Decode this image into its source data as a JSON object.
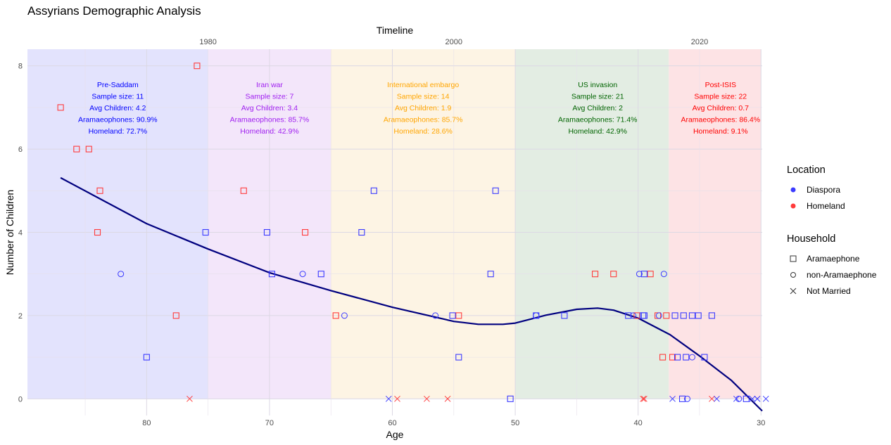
{
  "chart_data": {
    "type": "scatter",
    "title": "Assyrians Demographic Analysis",
    "xlabel": "Age",
    "ylabel": "Number of Children",
    "top_axis_label": "Timeline",
    "x_reversed": true,
    "xlim": [
      89.7,
      29.9
    ],
    "ylim": [
      -0.4,
      8.4
    ],
    "x_ticks": [
      80,
      70,
      60,
      50,
      40,
      30
    ],
    "y_ticks": [
      0,
      2,
      4,
      6,
      8
    ],
    "top_ticks": [
      1980,
      2000,
      2020
    ],
    "top_axis_year_minus_age": 2055,
    "grid": true,
    "periods": [
      {
        "name": "Pre-Saddam",
        "years": [
          null,
          1980
        ],
        "text_color": "#0000ff",
        "fill": "#e3e3fd",
        "lines": [
          "Pre-Saddam",
          "Sample size: 11",
          "Avg Children: 4.2",
          "Aramaeophones: 90.9%",
          "Homeland: 72.7%"
        ]
      },
      {
        "name": "Iran war",
        "years": [
          1980,
          1990
        ],
        "text_color": "#a020f0",
        "fill": "#f3e6fa",
        "lines": [
          "Iran war",
          "Sample size: 7",
          "Avg Children: 3.4",
          "Aramaeophones: 85.7%",
          "Homeland: 42.9%"
        ]
      },
      {
        "name": "International embargo",
        "years": [
          1990,
          2005
        ],
        "text_color": "#ffa500",
        "fill": "#fdf4e4",
        "lines": [
          "International embargo",
          "Sample size: 14",
          "Avg Children: 1.9",
          "Aramaeophones: 85.7%",
          "Homeland: 28.6%"
        ]
      },
      {
        "name": "US invasion",
        "years": [
          2005,
          2017.5
        ],
        "text_color": "#006400",
        "fill": "#e3ede3",
        "lines": [
          "US invasion",
          "Sample size: 21",
          "Avg Children: 2",
          "Aramaeophones: 71.4%",
          "Homeland: 42.9%"
        ]
      },
      {
        "name": "Post-ISIS",
        "years": [
          2017.5,
          2025
        ],
        "text_color": "#ff0000",
        "fill": "#fde3e5",
        "lines": [
          "Post-ISIS",
          "Sample size: 22",
          "Avg Children: 0.7",
          "Aramaeophones: 86.4%",
          "Homeland: 9.1%"
        ]
      }
    ],
    "series": [
      {
        "name": "Homeland",
        "color": "#ff3b3b",
        "points": [
          [
            87.0,
            7,
            "square"
          ],
          [
            85.7,
            6,
            "square"
          ],
          [
            84.7,
            6,
            "square"
          ],
          [
            83.8,
            5,
            "square"
          ],
          [
            84.0,
            4,
            "square"
          ],
          [
            77.6,
            2,
            "square"
          ],
          [
            75.9,
            8,
            "square"
          ],
          [
            72.1,
            5,
            "square"
          ],
          [
            67.1,
            4,
            "square"
          ],
          [
            64.6,
            2,
            "square"
          ],
          [
            54.6,
            2,
            "square"
          ],
          [
            43.5,
            3,
            "square"
          ],
          [
            42.0,
            3,
            "square"
          ],
          [
            39.0,
            3,
            "square"
          ],
          [
            40.1,
            2,
            "square"
          ],
          [
            38.4,
            2,
            "square"
          ],
          [
            37.7,
            2,
            "square"
          ],
          [
            38.0,
            1,
            "square"
          ],
          [
            37.2,
            1,
            "square"
          ],
          [
            76.5,
            0,
            "x"
          ],
          [
            59.6,
            0,
            "x"
          ],
          [
            57.2,
            0,
            "x"
          ],
          [
            55.5,
            0,
            "x"
          ],
          [
            39.6,
            0,
            "x"
          ],
          [
            39.5,
            0,
            "x"
          ],
          [
            34.0,
            0,
            "x"
          ]
        ]
      },
      {
        "name": "Diaspora",
        "color": "#3b3bff",
        "points": [
          [
            80.0,
            1,
            "square"
          ],
          [
            75.2,
            4,
            "square"
          ],
          [
            70.2,
            4,
            "square"
          ],
          [
            69.8,
            3,
            "square"
          ],
          [
            65.8,
            3,
            "square"
          ],
          [
            61.5,
            5,
            "square"
          ],
          [
            62.5,
            4,
            "square"
          ],
          [
            55.1,
            2,
            "square"
          ],
          [
            54.6,
            1,
            "square"
          ],
          [
            52.0,
            3,
            "square"
          ],
          [
            51.6,
            5,
            "square"
          ],
          [
            50.4,
            0,
            "square"
          ],
          [
            48.3,
            2,
            "square"
          ],
          [
            46.0,
            2,
            "square"
          ],
          [
            39.5,
            3,
            "square"
          ],
          [
            40.8,
            2,
            "square"
          ],
          [
            39.6,
            2,
            "square"
          ],
          [
            39.5,
            2,
            "square"
          ],
          [
            37.0,
            2,
            "square"
          ],
          [
            36.3,
            2,
            "square"
          ],
          [
            35.6,
            2,
            "square"
          ],
          [
            35.1,
            2,
            "square"
          ],
          [
            34.0,
            2,
            "square"
          ],
          [
            36.8,
            1,
            "square"
          ],
          [
            36.1,
            1,
            "square"
          ],
          [
            34.6,
            1,
            "square"
          ],
          [
            36.4,
            0,
            "square"
          ],
          [
            31.2,
            0,
            "square"
          ],
          [
            82.1,
            3,
            "circle"
          ],
          [
            67.3,
            3,
            "circle"
          ],
          [
            63.9,
            2,
            "circle"
          ],
          [
            56.5,
            2,
            "circle"
          ],
          [
            48.3,
            2,
            "circle"
          ],
          [
            39.9,
            3,
            "circle"
          ],
          [
            37.9,
            3,
            "circle"
          ],
          [
            40.4,
            2,
            "circle"
          ],
          [
            38.3,
            2,
            "circle"
          ],
          [
            35.6,
            1,
            "circle"
          ],
          [
            36.0,
            0,
            "circle"
          ],
          [
            31.8,
            0,
            "circle"
          ],
          [
            60.3,
            0,
            "x"
          ],
          [
            37.2,
            0,
            "x"
          ],
          [
            33.6,
            0,
            "x"
          ],
          [
            32.0,
            0,
            "x"
          ],
          [
            30.7,
            0,
            "x"
          ],
          [
            30.3,
            0,
            "x"
          ],
          [
            30.3,
            0,
            "x"
          ],
          [
            29.6,
            0,
            "x"
          ]
        ]
      }
    ],
    "trend": {
      "color": "#00007f",
      "points": [
        [
          87.0,
          5.31
        ],
        [
          80,
          4.21
        ],
        [
          75,
          3.6
        ],
        [
          70,
          3.03
        ],
        [
          65,
          2.6
        ],
        [
          60,
          2.2
        ],
        [
          55,
          1.86
        ],
        [
          53,
          1.79
        ],
        [
          51,
          1.79
        ],
        [
          50,
          1.82
        ],
        [
          47.5,
          2.01
        ],
        [
          45,
          2.15
        ],
        [
          43.3,
          2.18
        ],
        [
          42,
          2.13
        ],
        [
          40,
          1.94
        ],
        [
          37.4,
          1.54
        ],
        [
          35,
          1.03
        ],
        [
          32.4,
          0.44
        ],
        [
          29.9,
          -0.29
        ]
      ]
    }
  },
  "legend": {
    "location_title": "Location",
    "location_items": [
      {
        "label": "Diaspora",
        "color": "#3b3bff"
      },
      {
        "label": "Homeland",
        "color": "#ff3b3b"
      }
    ],
    "household_title": "Household",
    "household_items": [
      {
        "label": "Aramaephone",
        "shape": "square"
      },
      {
        "label": "non-Aramaephone",
        "shape": "circle"
      },
      {
        "label": "Not Married",
        "shape": "x"
      }
    ]
  }
}
